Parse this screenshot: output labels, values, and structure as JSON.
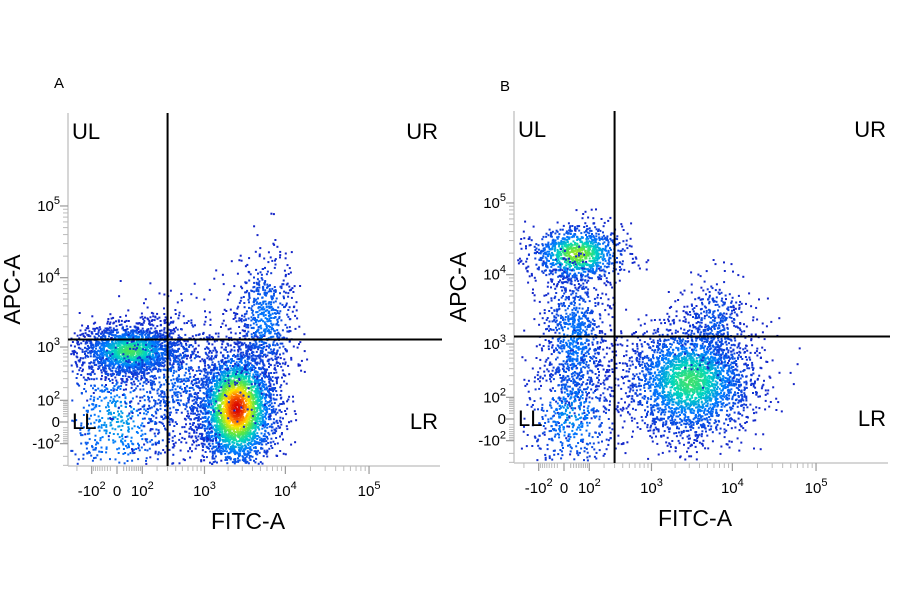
{
  "chart_data": [
    {
      "type": "scatter",
      "panel": "A",
      "xlabel": "FITC-A",
      "ylabel": "APC-A",
      "scale": "biexponential (logicle)",
      "x_ticks": [
        {
          "value": -100,
          "base": "-10",
          "exp": "2"
        },
        {
          "value": 0,
          "base": "0",
          "exp": ""
        },
        {
          "value": 100,
          "base": "10",
          "exp": "2"
        },
        {
          "value": 1000,
          "base": "10",
          "exp": "3"
        },
        {
          "value": 10000,
          "base": "10",
          "exp": "4"
        },
        {
          "value": 100000,
          "base": "10",
          "exp": "5"
        }
      ],
      "y_ticks": [
        {
          "value": -100,
          "base": "-10",
          "exp": "2"
        },
        {
          "value": 0,
          "base": "0",
          "exp": ""
        },
        {
          "value": 100,
          "base": "10",
          "exp": "2"
        },
        {
          "value": 1000,
          "base": "10",
          "exp": "3"
        },
        {
          "value": 10000,
          "base": "10",
          "exp": "4"
        },
        {
          "value": 100000,
          "base": "10",
          "exp": "5"
        }
      ],
      "gate": {
        "x": 300,
        "y": 1300
      },
      "quadrants": [
        "UL",
        "UR",
        "LL",
        "LR"
      ],
      "populations": [
        {
          "x": 2500,
          "y": 60,
          "sx": 0.24,
          "sy": 0.42,
          "n": 3200,
          "peak": 1.0
        },
        {
          "x": 40,
          "y": 900,
          "sx": 0.3,
          "sy": 0.18,
          "n": 1900,
          "peak": 0.62
        },
        {
          "x": 0,
          "y": 10,
          "sx": 0.42,
          "sy": 0.55,
          "n": 650,
          "peak": 0.38
        },
        {
          "x": 5500,
          "y": 2500,
          "sx": 0.18,
          "sy": 0.45,
          "n": 650,
          "peak": 0.3
        },
        {
          "x": 400,
          "y": 300,
          "sx": 0.35,
          "sy": 0.5,
          "n": 700,
          "peak": 0.22
        }
      ]
    },
    {
      "type": "scatter",
      "panel": "B",
      "xlabel": "FITC-A",
      "ylabel": "APC-A",
      "scale": "biexponential (logicle)",
      "x_ticks": [
        {
          "value": -100,
          "base": "-10",
          "exp": "2"
        },
        {
          "value": 0,
          "base": "0",
          "exp": ""
        },
        {
          "value": 100,
          "base": "10",
          "exp": "2"
        },
        {
          "value": 1000,
          "base": "10",
          "exp": "3"
        },
        {
          "value": 10000,
          "base": "10",
          "exp": "4"
        },
        {
          "value": 100000,
          "base": "10",
          "exp": "5"
        }
      ],
      "y_ticks": [
        {
          "value": -100,
          "base": "-10",
          "exp": "2"
        },
        {
          "value": 0,
          "base": "0",
          "exp": ""
        },
        {
          "value": 100,
          "base": "10",
          "exp": "2"
        },
        {
          "value": 1000,
          "base": "10",
          "exp": "3"
        },
        {
          "value": 10000,
          "base": "10",
          "exp": "4"
        },
        {
          "value": 100000,
          "base": "10",
          "exp": "5"
        }
      ],
      "gate": {
        "x": 300,
        "y": 1300
      },
      "quadrants": [
        "UL",
        "UR",
        "LL",
        "LR"
      ],
      "populations": [
        {
          "x": 3000,
          "y": 250,
          "sx": 0.38,
          "sy": 0.4,
          "n": 2700,
          "peak": 0.6
        },
        {
          "x": 40,
          "y": 20000,
          "sx": 0.28,
          "sy": 0.2,
          "n": 1050,
          "peak": 0.72
        },
        {
          "x": 30,
          "y": 1200,
          "sx": 0.2,
          "sy": 0.55,
          "n": 900,
          "peak": 0.3
        },
        {
          "x": 20,
          "y": 20,
          "sx": 0.28,
          "sy": 0.45,
          "n": 500,
          "peak": 0.36
        },
        {
          "x": 6000,
          "y": 2000,
          "sx": 0.22,
          "sy": 0.35,
          "n": 350,
          "peak": 0.2
        }
      ]
    }
  ]
}
